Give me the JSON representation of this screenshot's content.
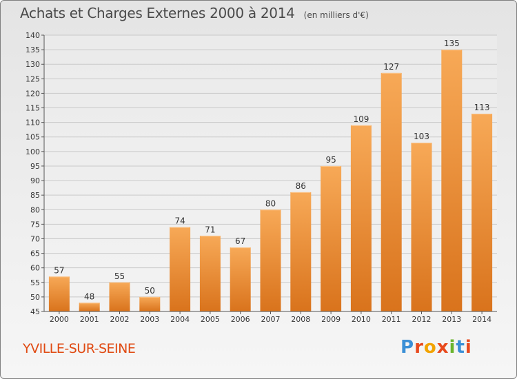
{
  "header": {
    "title": "Achats et Charges Externes 2000 à 2014",
    "unit": "(en milliers d'€)"
  },
  "footer": {
    "place": "YVILLE-SUR-SEINE",
    "brand": "Proxiti",
    "brand_letters": [
      {
        "ch": "P",
        "color": "#3b8fd6"
      },
      {
        "ch": "r",
        "color": "#e8491d"
      },
      {
        "ch": "o",
        "color": "#f2a300"
      },
      {
        "ch": "x",
        "color": "#e8491d"
      },
      {
        "ch": "i",
        "color": "#6ab42d"
      },
      {
        "ch": "t",
        "color": "#3b8fd6"
      },
      {
        "ch": "i",
        "color": "#e8491d"
      }
    ]
  },
  "chart_data": {
    "type": "bar",
    "categories": [
      "2000",
      "2001",
      "2002",
      "2003",
      "2004",
      "2005",
      "2006",
      "2007",
      "2008",
      "2009",
      "2010",
      "2011",
      "2012",
      "2013",
      "2014"
    ],
    "values": [
      57,
      48,
      55,
      50,
      74,
      71,
      67,
      80,
      86,
      95,
      109,
      127,
      103,
      135,
      113
    ],
    "ylim": [
      45,
      140
    ],
    "ytick_step": 5,
    "grid": true,
    "bar_color_light": "#f7a957",
    "bar_color_dark": "#d9731c",
    "legend": "none"
  }
}
